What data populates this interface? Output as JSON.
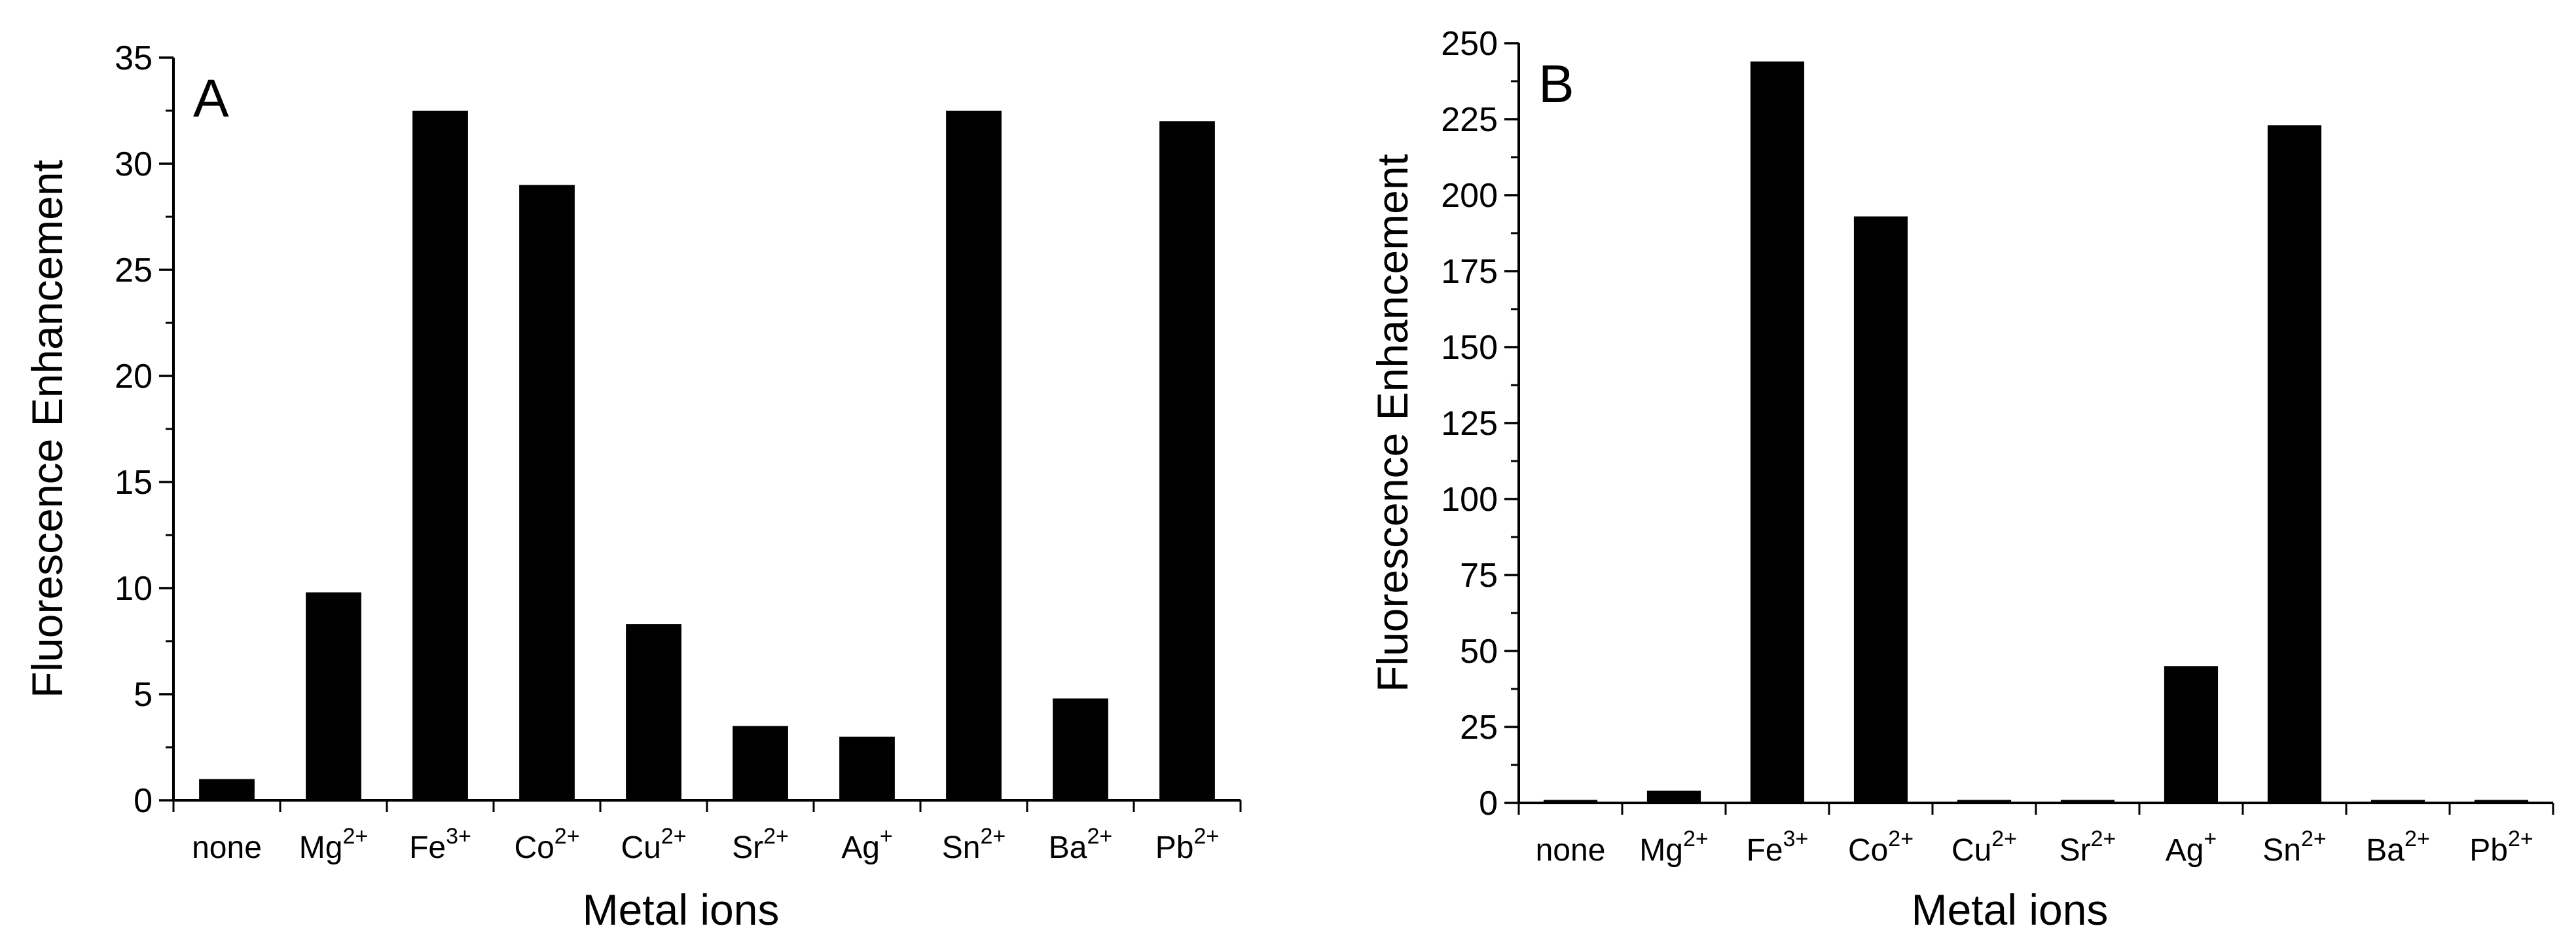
{
  "chart_data": [
    {
      "type": "bar",
      "panel_label": "A",
      "categories": [
        {
          "base": "none",
          "sup": ""
        },
        {
          "base": "Mg",
          "sup": "2+"
        },
        {
          "base": "Fe",
          "sup": "3+"
        },
        {
          "base": "Co",
          "sup": "2+"
        },
        {
          "base": "Cu",
          "sup": "2+"
        },
        {
          "base": "Sr",
          "sup": "2+"
        },
        {
          "base": "Ag",
          "sup": "+"
        },
        {
          "base": "Sn",
          "sup": "2+"
        },
        {
          "base": "Ba",
          "sup": "2+"
        },
        {
          "base": "Pb",
          "sup": "2+"
        }
      ],
      "values": [
        1.0,
        9.8,
        32.5,
        29.0,
        8.3,
        3.5,
        3.0,
        32.5,
        4.8,
        32.0
      ],
      "xlabel": "Metal ions",
      "ylabel": "Fluorescence Enhancement",
      "ylim": [
        0,
        35
      ],
      "yticks": [
        0,
        5,
        10,
        15,
        20,
        25,
        30,
        35
      ],
      "yminor_step": 2.5,
      "bar_color": "#000000",
      "grid": false
    },
    {
      "type": "bar",
      "panel_label": "B",
      "categories": [
        {
          "base": "none",
          "sup": ""
        },
        {
          "base": "Mg",
          "sup": "2+"
        },
        {
          "base": "Fe",
          "sup": "3+"
        },
        {
          "base": "Co",
          "sup": "2+"
        },
        {
          "base": "Cu",
          "sup": "2+"
        },
        {
          "base": "Sr",
          "sup": "2+"
        },
        {
          "base": "Ag",
          "sup": "+"
        },
        {
          "base": "Sn",
          "sup": "2+"
        },
        {
          "base": "Ba",
          "sup": "2+"
        },
        {
          "base": "Pb",
          "sup": "2+"
        }
      ],
      "values": [
        1.0,
        4.0,
        244,
        193,
        1.0,
        1.0,
        45,
        223,
        1.0,
        1.0
      ],
      "xlabel": "Metal ions",
      "ylabel": "Fluorescence Enhancement",
      "ylim": [
        0,
        250
      ],
      "yticks": [
        0,
        25,
        50,
        75,
        100,
        125,
        150,
        175,
        200,
        225,
        250
      ],
      "yminor_step": 12.5,
      "bar_color": "#000000",
      "grid": false
    }
  ]
}
